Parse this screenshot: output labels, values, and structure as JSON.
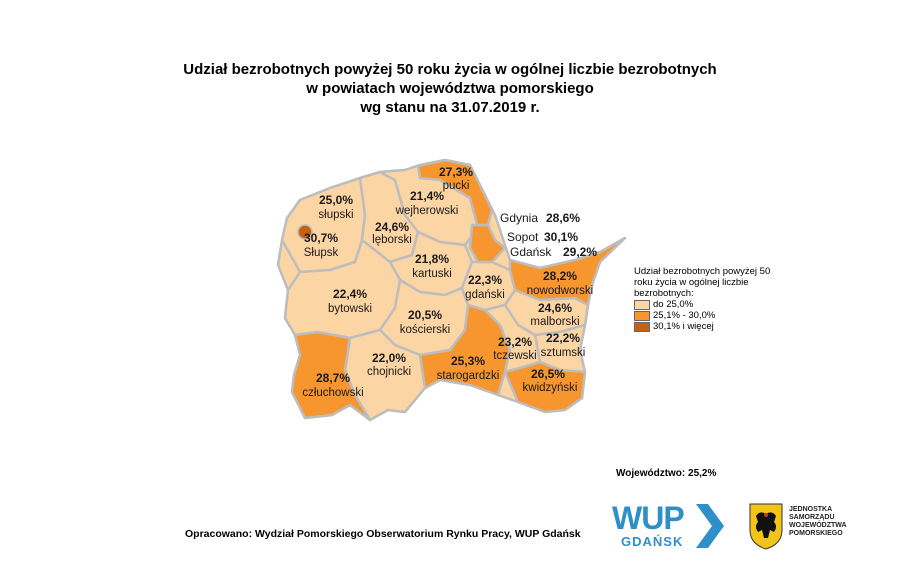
{
  "title": {
    "line1": "Udział bezrobotnych powyżej 50 roku życia w ogólnej liczbie bezrobotnych",
    "line2": "w powiatach województwa pomorskiego",
    "line3": "wg stanu na 31.07.2019 r."
  },
  "colors": {
    "low": "#fcd5a4",
    "mid": "#f7962e",
    "high": "#c8610f",
    "border": "#bdbdbd"
  },
  "districts": [
    {
      "name": "słupski",
      "value": "25,0%",
      "category": "low"
    },
    {
      "name": "Słupsk",
      "value": "30,7%",
      "category": "high"
    },
    {
      "name": "lęborski",
      "value": "24,6%",
      "category": "low"
    },
    {
      "name": "wejherowski",
      "value": "21,4%",
      "category": "low"
    },
    {
      "name": "pucki",
      "value": "27,3%",
      "category": "mid"
    },
    {
      "name": "kartuski",
      "value": "21,8%",
      "category": "low"
    },
    {
      "name": "bytowski",
      "value": "22,4%",
      "category": "low"
    },
    {
      "name": "kościerski",
      "value": "20,5%",
      "category": "low"
    },
    {
      "name": "gdański",
      "value": "22,3%",
      "category": "low"
    },
    {
      "name": "nowodworski",
      "value": "28,2%",
      "category": "mid"
    },
    {
      "name": "malborski",
      "value": "24,6%",
      "category": "low"
    },
    {
      "name": "tczewski",
      "value": "23,2%",
      "category": "low"
    },
    {
      "name": "sztumski",
      "value": "22,2%",
      "category": "low"
    },
    {
      "name": "kwidzyński",
      "value": "26,5%",
      "category": "mid"
    },
    {
      "name": "starogardzki",
      "value": "25,3%",
      "category": "mid"
    },
    {
      "name": "chojnicki",
      "value": "22,0%",
      "category": "low"
    },
    {
      "name": "człuchowski",
      "value": "28,7%",
      "category": "mid"
    }
  ],
  "cities": [
    {
      "name": "Gdynia",
      "value": "28,6%"
    },
    {
      "name": "Sopot",
      "value": "30,1%"
    },
    {
      "name": "Gdańsk",
      "value": "29,2%"
    }
  ],
  "legend": {
    "title": "Udział bezrobotnych powyżej 50 roku życia w ogólnej liczbie bezrobotnych:",
    "items": [
      {
        "label": "do 25,0%",
        "color": "#fcd5a4"
      },
      {
        "label": "25,1% - 30,0%",
        "color": "#f7962e"
      },
      {
        "label": "30,1% i więcej",
        "color": "#c8610f"
      }
    ]
  },
  "region_total": "Województwo: 25,2%",
  "source": "Opracowano: Wydział Pomorskiego Obserwatorium Rynku Pracy, WUP Gdańsk",
  "logo_wup": {
    "main": "WUP",
    "sub": "GDAŃSK"
  },
  "logo_samorzad": {
    "line1": "JEDNOSTKA",
    "line2": "SAMORZĄDU",
    "line3": "WOJEWÓDZTWA",
    "line4": "POMORSKIEGO"
  }
}
